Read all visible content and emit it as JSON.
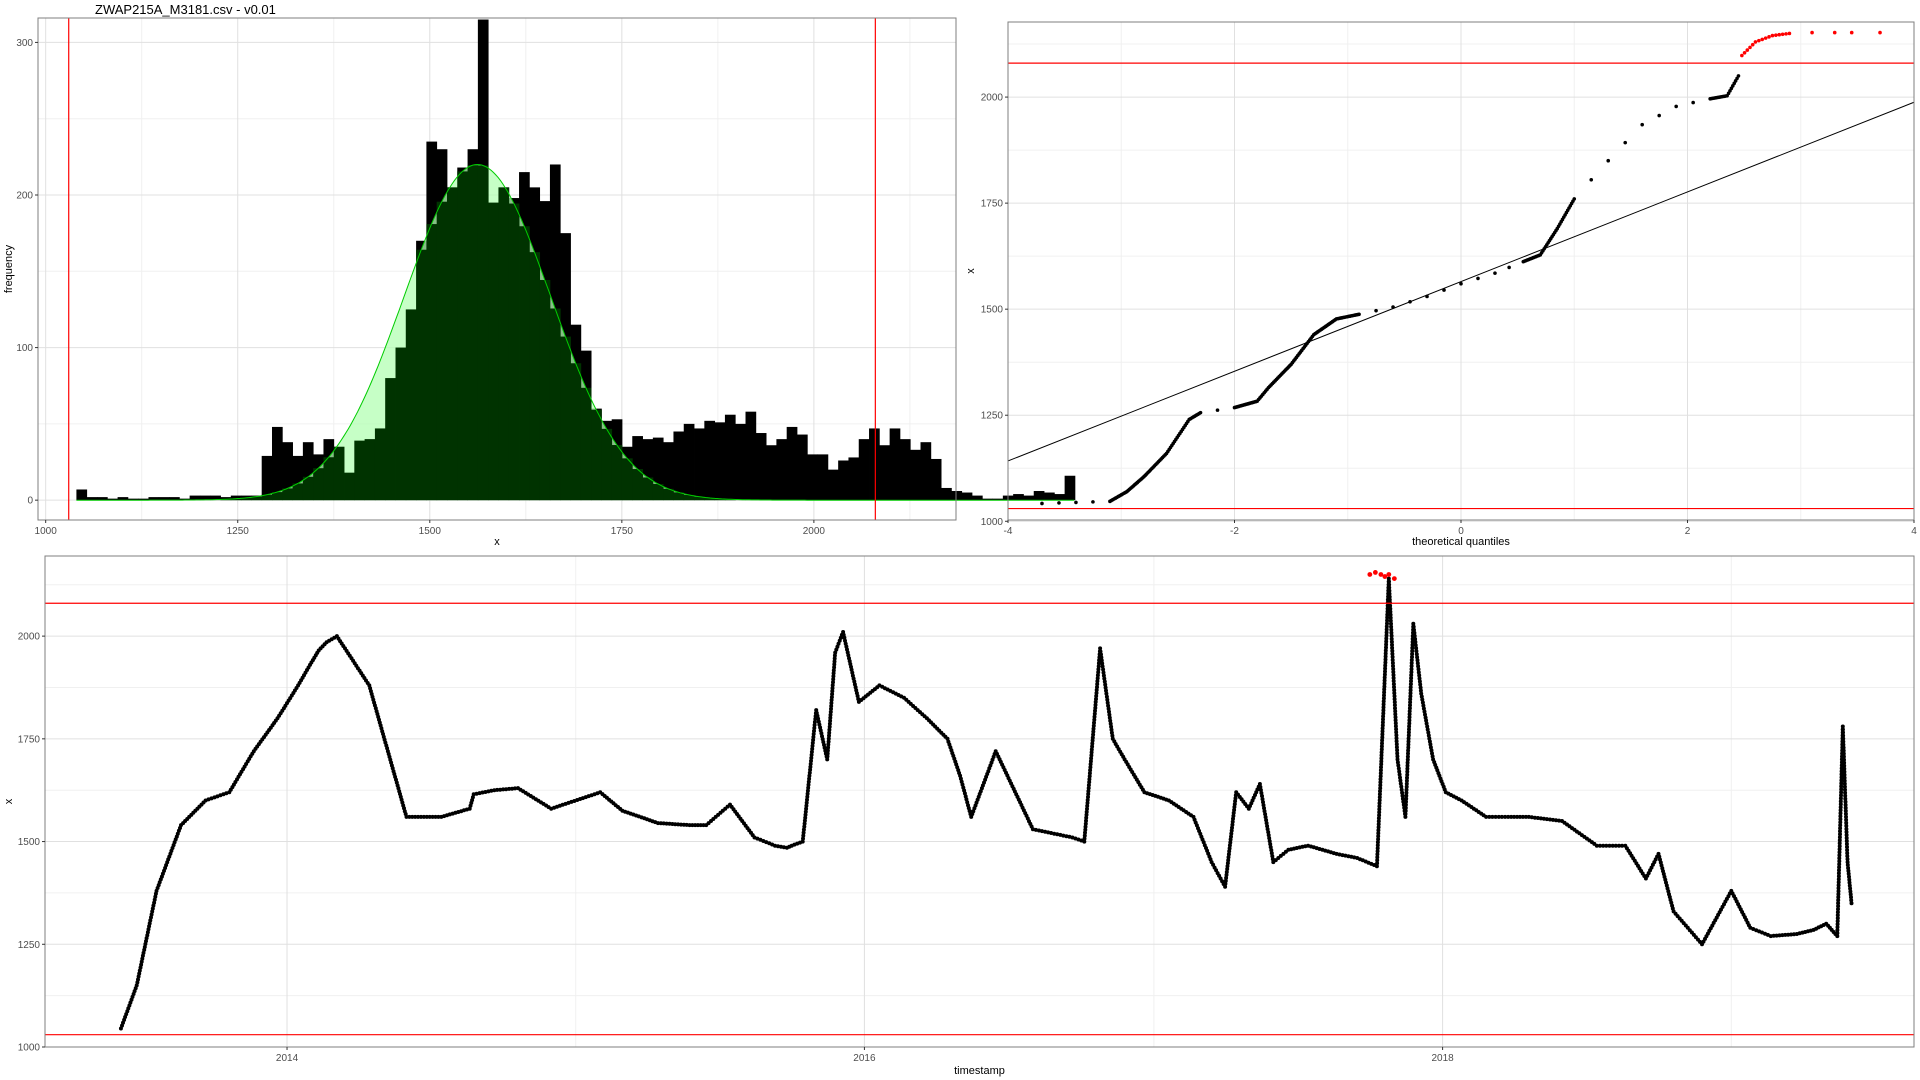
{
  "title": "ZWAP215A_M3181.csv - v0.01",
  "colors": {
    "data": "#000000",
    "limit": "#ff0000",
    "normal_line": "#00cc00",
    "normal_fill": "#b3ffb3",
    "overlap": "#003300",
    "grid": "#e0e0e0",
    "panel_border": "#7f7f7f"
  },
  "limits": {
    "lower": 1030,
    "upper": 2080
  },
  "chart_data": [
    {
      "type": "bar",
      "name": "histogram",
      "xlabel": "x",
      "ylabel": "frequency",
      "xlim": [
        990,
        2185
      ],
      "ylim": [
        -13,
        316
      ],
      "xticks": [
        1000,
        1250,
        1500,
        1750,
        2000
      ],
      "yticks": [
        0,
        100,
        200,
        300
      ],
      "grid": true,
      "bin_start": 1040,
      "bin_width": 13.4,
      "values": [
        7,
        2,
        2,
        1,
        2,
        1,
        1,
        2,
        2,
        2,
        1,
        3,
        3,
        3,
        2,
        3,
        3,
        3,
        29,
        48,
        38,
        29,
        38,
        30,
        40,
        35,
        18,
        39,
        40,
        47,
        80,
        100,
        125,
        170,
        235,
        230,
        205,
        218,
        230,
        315,
        195,
        205,
        198,
        215,
        205,
        196,
        220,
        175,
        115,
        98,
        60,
        52,
        53,
        35,
        42,
        40,
        41,
        38,
        45,
        50,
        47,
        52,
        51,
        56,
        50,
        58,
        44,
        36,
        40,
        48,
        43,
        30,
        30,
        20,
        26,
        28,
        40,
        47,
        36,
        47,
        40,
        33,
        38,
        27,
        8,
        6,
        5,
        3,
        1,
        1,
        3,
        4,
        3,
        6,
        5,
        4,
        16
      ],
      "normal_curve": {
        "mean": 1562,
        "sd": 95.5,
        "peak": 220
      },
      "vlines": [
        1030,
        2080
      ]
    },
    {
      "type": "scatter",
      "name": "qq-plot",
      "xlabel": "theoretical quantiles",
      "ylabel": "x",
      "xlim": [
        -4,
        4
      ],
      "ylim": [
        1003,
        2177
      ],
      "xticks": [
        -4,
        -2,
        0,
        2,
        4
      ],
      "yticks": [
        1000,
        1250,
        1500,
        1750,
        2000
      ],
      "grid": true,
      "curve_points": [
        [
          -3.7,
          1042
        ],
        [
          -3.1,
          1047
        ],
        [
          -2.95,
          1070
        ],
        [
          -2.8,
          1105
        ],
        [
          -2.6,
          1160
        ],
        [
          -2.4,
          1240
        ],
        [
          -2.3,
          1256
        ],
        [
          -2.0,
          1268
        ],
        [
          -1.8,
          1283
        ],
        [
          -1.7,
          1315
        ],
        [
          -1.5,
          1370
        ],
        [
          -1.3,
          1440
        ],
        [
          -1.1,
          1477
        ],
        [
          -0.9,
          1488
        ],
        [
          -0.6,
          1505
        ],
        [
          -0.3,
          1530
        ],
        [
          0.0,
          1560
        ],
        [
          0.3,
          1585
        ],
        [
          0.55,
          1612
        ],
        [
          0.7,
          1628
        ],
        [
          0.85,
          1690
        ],
        [
          1.0,
          1760
        ],
        [
          1.3,
          1850
        ],
        [
          1.6,
          1935
        ],
        [
          1.9,
          1978
        ],
        [
          2.2,
          1996
        ],
        [
          2.35,
          2003
        ],
        [
          2.45,
          2050
        ]
      ],
      "outlier_points": [
        [
          2.48,
          2098
        ],
        [
          2.6,
          2130
        ],
        [
          2.75,
          2145
        ],
        [
          2.9,
          2150
        ],
        [
          3.1,
          2152
        ],
        [
          3.3,
          2152
        ],
        [
          3.45,
          2152
        ],
        [
          3.7,
          2152
        ]
      ],
      "reference_line": {
        "intercept": 1565,
        "slope": 105.7
      },
      "hlines": [
        1030,
        2080
      ]
    },
    {
      "type": "line",
      "name": "time-series",
      "xlabel": "timestamp",
      "ylabel": "x",
      "xlim": [
        "2013-03-01",
        "2019-08-20"
      ],
      "ylim": [
        1000,
        2195
      ],
      "xticks": [
        "2014",
        "2016",
        "2018"
      ],
      "yticks": [
        1000,
        1250,
        1500,
        1750,
        2000
      ],
      "grid": true,
      "series": [
        {
          "x": [
            "2013-06-05",
            "2013-06-25",
            "2013-07-20",
            "2013-08-20",
            "2013-09-20",
            "2013-10-20",
            "2013-11-20",
            "2013-12-20",
            "2014-01-15",
            "2014-01-30",
            "2014-02-10",
            "2014-02-20",
            "2014-03-05",
            "2014-04-15",
            "2014-06-01",
            "2014-07-15",
            "2014-08-20",
            "2014-08-25",
            "2014-09-20",
            "2014-10-20",
            "2014-12-01",
            "2015-02-01",
            "2015-03-01",
            "2015-04-15",
            "2015-05-25",
            "2015-06-15",
            "2015-07-15",
            "2015-08-15",
            "2015-09-10",
            "2015-09-25",
            "2015-10-01",
            "2015-10-15",
            "2015-11-01",
            "2015-11-15",
            "2015-11-25",
            "2015-12-05",
            "2015-12-25",
            "2016-01-20",
            "2016-02-20",
            "2016-03-20",
            "2016-04-15",
            "2016-05-01",
            "2016-05-15",
            "2016-06-15",
            "2016-08-01",
            "2016-09-20",
            "2016-10-05",
            "2016-10-25",
            "2016-11-10",
            "2016-11-25",
            "2016-12-20",
            "2017-01-20",
            "2017-02-20",
            "2017-03-15",
            "2017-04-01",
            "2017-04-15",
            "2017-05-01",
            "2017-05-15",
            "2017-06-01",
            "2017-06-20",
            "2017-07-15",
            "2017-08-20",
            "2017-09-15",
            "2017-10-10",
            "2017-10-25",
            "2017-11-05",
            "2017-11-15",
            "2017-11-25",
            "2017-12-05",
            "2017-12-20",
            "2018-01-05",
            "2018-01-25",
            "2018-02-25",
            "2018-03-25",
            "2018-04-20",
            "2018-06-01",
            "2018-07-15",
            "2018-08-20",
            "2018-09-15",
            "2018-10-01",
            "2018-10-20",
            "2018-11-25",
            "2019-01-01",
            "2019-01-25",
            "2019-02-20",
            "2019-03-25",
            "2019-04-15",
            "2019-05-01",
            "2019-05-15",
            "2019-05-22",
            "2019-05-28",
            "2019-06-02"
          ],
          "values": [
            1045,
            1150,
            1380,
            1540,
            1600,
            1620,
            1720,
            1800,
            1880,
            1930,
            1965,
            1985,
            2000,
            1880,
            1560,
            1560,
            1580,
            1615,
            1625,
            1630,
            1580,
            1620,
            1575,
            1545,
            1540,
            1540,
            1590,
            1510,
            1490,
            1485,
            1490,
            1500,
            1820,
            1700,
            1960,
            2010,
            1840,
            1880,
            1850,
            1800,
            1750,
            1660,
            1560,
            1720,
            1530,
            1510,
            1500,
            1970,
            1750,
            1700,
            1620,
            1600,
            1560,
            1450,
            1390,
            1620,
            1580,
            1640,
            1450,
            1480,
            1490,
            1470,
            1460,
            1440,
            2140,
            1700,
            1560,
            2030,
            1860,
            1700,
            1620,
            1600,
            1560,
            1560,
            1560,
            1550,
            1490,
            1490,
            1410,
            1470,
            1330,
            1250,
            1380,
            1290,
            1270,
            1275,
            1285,
            1300,
            1270,
            1780,
            1450,
            1350
          ]
        },
        {
          "x": [
            "2017-10-01",
            "2017-10-08",
            "2017-10-15",
            "2017-10-20",
            "2017-10-25",
            "2017-11-01"
          ],
          "values": [
            2150,
            2155,
            2150,
            2145,
            2150,
            2140
          ],
          "color": "outlier"
        }
      ],
      "hlines": [
        1030,
        2080
      ]
    }
  ]
}
